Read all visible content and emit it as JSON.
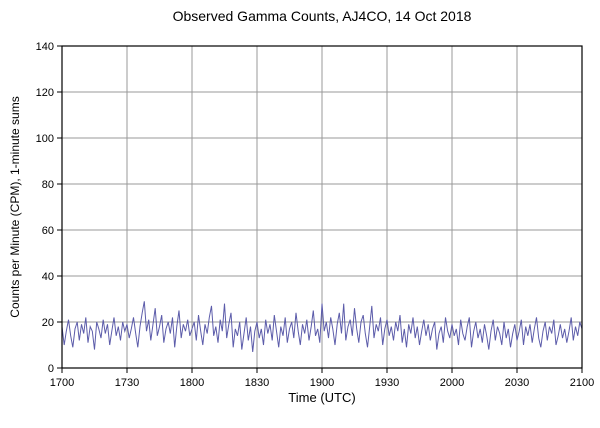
{
  "chart_data": {
    "type": "line",
    "title": "Observed Gamma Counts, AJ4CO, 14 Oct 2018",
    "xlabel": "Time (UTC)",
    "ylabel": "Counts per Minute (CPM), 1-minute sums",
    "x_start_minute": 0,
    "x_end_minute": 240,
    "xtick_interval_minutes": 30,
    "xtick_labels": [
      "1700",
      "1730",
      "1800",
      "1830",
      "1900",
      "1930",
      "2000",
      "2030",
      "2100"
    ],
    "ytick_values": [
      0,
      20,
      40,
      60,
      80,
      100,
      120,
      140
    ],
    "ylim": [
      0,
      140
    ],
    "grid": true,
    "grid_color": "#999999",
    "border_color": "#000000",
    "line_color": "#5c5caa",
    "background_color": "#ffffff",
    "values": [
      18,
      10,
      16,
      21,
      14,
      9,
      17,
      20,
      12,
      19,
      15,
      22,
      11,
      18,
      16,
      8,
      20,
      17,
      13,
      21,
      15,
      19,
      10,
      16,
      22,
      14,
      18,
      12,
      20,
      16,
      19,
      13,
      17,
      22,
      15,
      9,
      18,
      24,
      29,
      16,
      21,
      12,
      19,
      26,
      14,
      18,
      23,
      11,
      17,
      20,
      15,
      22,
      9,
      18,
      25,
      13,
      19,
      16,
      21,
      14,
      17,
      20,
      12,
      23,
      16,
      10,
      19,
      15,
      22,
      27,
      14,
      18,
      11,
      21,
      16,
      28,
      13,
      19,
      24,
      9,
      17,
      14,
      20,
      8,
      15,
      22,
      12,
      18,
      7,
      16,
      20,
      13,
      17,
      10,
      21,
      15,
      19,
      12,
      23,
      16,
      9,
      18,
      14,
      22,
      11,
      17,
      20,
      13,
      24,
      16,
      10,
      19,
      15,
      21,
      12,
      18,
      25,
      14,
      17,
      11,
      28,
      16,
      20,
      13,
      22,
      17,
      10,
      19,
      24,
      15,
      28,
      12,
      18,
      21,
      14,
      26,
      17,
      11,
      20,
      23,
      15,
      9,
      18,
      27,
      13,
      19,
      16,
      22,
      10,
      17,
      21,
      14,
      18,
      12,
      20,
      16,
      23,
      11,
      17,
      9,
      19,
      15,
      22,
      13,
      18,
      10,
      16,
      21,
      14,
      19,
      12,
      17,
      20,
      8,
      15,
      18,
      11,
      22,
      16,
      13,
      19,
      14,
      17,
      10,
      21,
      15,
      12,
      18,
      22,
      9,
      16,
      20,
      13,
      17,
      11,
      19,
      14,
      8,
      16,
      21,
      12,
      18,
      15,
      10,
      20,
      13,
      17,
      9,
      15,
      19,
      12,
      16,
      21,
      10,
      18,
      14,
      19,
      11,
      17,
      22,
      13,
      9,
      16,
      20,
      12,
      18,
      15,
      21,
      10,
      14,
      19,
      13,
      17,
      11,
      16,
      22,
      12,
      18,
      14,
      20,
      17
    ]
  }
}
